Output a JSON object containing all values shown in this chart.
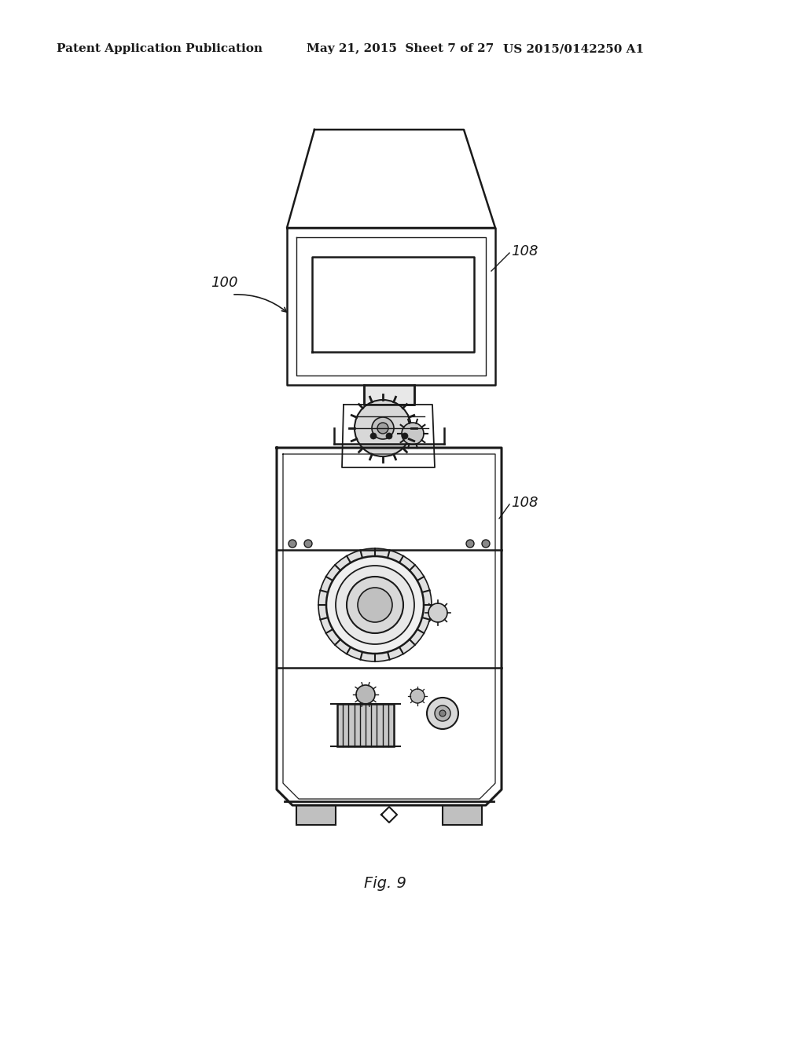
{
  "header_left": "Patent Application Publication",
  "header_mid": "May 21, 2015  Sheet 7 of 27",
  "header_right": "US 2015/0142250 A1",
  "fig_caption": "Fig. 9",
  "label_100": "100",
  "label_108_top": "108",
  "label_108_bot": "108",
  "bg_color": "#ffffff",
  "line_color": "#1a1a1a",
  "header_fontsize": 11,
  "caption_fontsize": 14,
  "label_fontsize": 13
}
